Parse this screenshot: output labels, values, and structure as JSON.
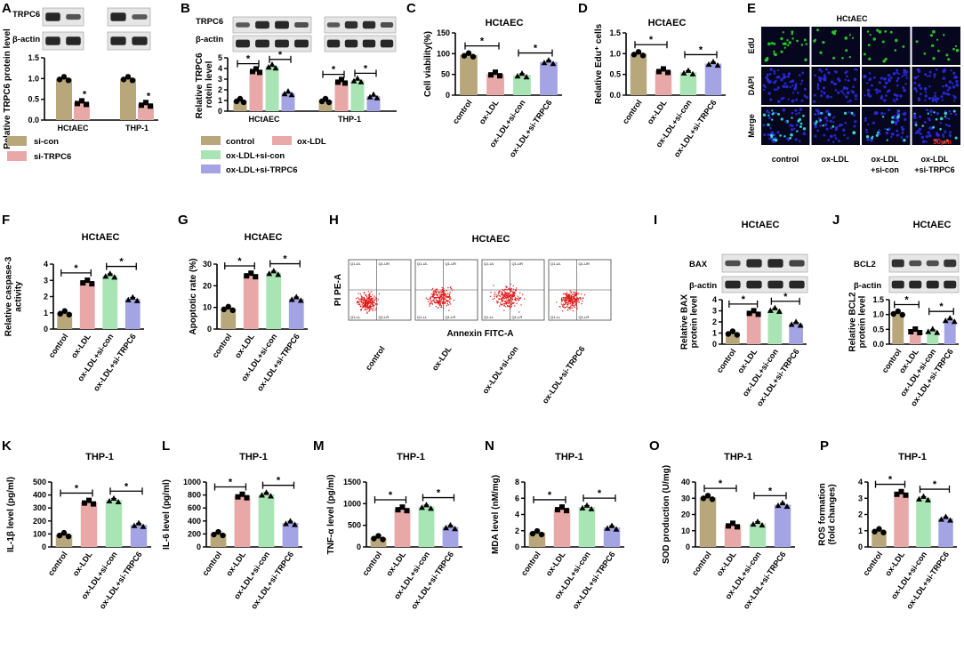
{
  "colors": {
    "control": "#b8a77a",
    "ox_ldl": "#e8a8a8",
    "si_con": "#a8e4b4",
    "si_trpc6": "#a4a4e4",
    "axis": "#000000",
    "blot_bg": "#e6e6e6",
    "flow_dot": "#e01818",
    "micro_bg": "#06061e"
  },
  "panels": {
    "A": {
      "letter": "A",
      "blot_labels": [
        "TRPC6",
        "β-actin"
      ],
      "ylabel": "Relative TRPC6 protein level",
      "chart_data": {
        "type": "bar",
        "categories": [
          "HCtAEC",
          "THP-1"
        ],
        "series": [
          {
            "name": "si-con",
            "values": [
              1.0,
              1.0
            ]
          },
          {
            "name": "si-TRPC6",
            "values": [
              0.42,
              0.38
            ]
          }
        ],
        "ylim": [
          0,
          1.5
        ],
        "yticks": [
          "0.0",
          "0.5",
          "1.0",
          "1.5"
        ]
      },
      "legend": [
        "si-con",
        "si-TRPC6"
      ]
    },
    "B": {
      "letter": "B",
      "blot_labels": [
        "TRPC6",
        "β-actin"
      ],
      "ylabel": "Relative TRPC6 protein level",
      "chart_data": {
        "type": "bar",
        "categories": [
          "HCtAEC",
          "THP-1"
        ],
        "series": [
          {
            "name": "control",
            "values": [
              1.0,
              1.0
            ]
          },
          {
            "name": "ox-LDL",
            "values": [
              3.8,
              2.8
            ]
          },
          {
            "name": "ox-LDL+si-con",
            "values": [
              4.2,
              2.9
            ]
          },
          {
            "name": "ox-LDL+si-TRPC6",
            "values": [
              1.7,
              1.4
            ]
          }
        ],
        "ylim": [
          0,
          5
        ],
        "yticks": [
          "0",
          "1",
          "2",
          "3",
          "4",
          "5"
        ]
      },
      "legend": [
        "control",
        "ox-LDL",
        "ox-LDL+si-con",
        "ox-LDL+si-TRPC6"
      ]
    },
    "C": {
      "letter": "C",
      "title": "HCtAEC",
      "ylabel": "Cell viability(%)",
      "chart_data": {
        "type": "bar",
        "categories": [
          "control",
          "ox-LDL",
          "ox-LDL+si-con",
          "ox-LDL+si-TRPC6"
        ],
        "values": [
          97,
          51,
          48,
          80
        ],
        "ylim": [
          0,
          150
        ],
        "yticks": [
          "0",
          "50",
          "100",
          "150"
        ]
      }
    },
    "D": {
      "letter": "D",
      "title": "HCtAEC",
      "ylabel": "Relative Edu⁺ cells",
      "chart_data": {
        "type": "bar",
        "categories": [
          "control",
          "ox-LDL",
          "ox-LDL+si-con",
          "ox-LDL+si-TRPC6"
        ],
        "values": [
          1.0,
          0.59,
          0.55,
          0.76
        ],
        "ylim": [
          0,
          1.5
        ],
        "yticks": [
          "0.0",
          "0.5",
          "1.0",
          "1.5"
        ]
      }
    },
    "E": {
      "letter": "E",
      "title": "HCtAEC",
      "rows": [
        "EdU",
        "DAPI",
        "Merge"
      ],
      "cols": [
        "control",
        "ox-LDL",
        "ox-LDL +si-con",
        "ox-LDL +si-TRPC6"
      ],
      "scale": "50μm"
    },
    "F": {
      "letter": "F",
      "title": "HCtAEC",
      "ylabel": "Relative caspase-3 activity",
      "chart_data": {
        "type": "bar",
        "categories": [
          "control",
          "ox-LDL",
          "ox-LDL+si-con",
          "ox-LDL+si-TRPC6"
        ],
        "values": [
          1.0,
          2.9,
          3.3,
          1.85
        ],
        "ylim": [
          0,
          4
        ],
        "yticks": [
          "0",
          "1",
          "2",
          "3",
          "4"
        ]
      }
    },
    "G": {
      "letter": "G",
      "title": "HCtAEC",
      "ylabel": "Apoptotic rate (%)",
      "chart_data": {
        "type": "bar",
        "categories": [
          "control",
          "ox-LDL",
          "ox-LDL+si-con",
          "ox-LDL+si-TRPC6"
        ],
        "values": [
          9.5,
          25,
          26,
          14
        ],
        "ylim": [
          0,
          30
        ],
        "yticks": [
          "0",
          "10",
          "20",
          "30"
        ]
      }
    },
    "H": {
      "letter": "H",
      "title": "HCtAEC",
      "ylabel": "PI PE-A",
      "xlabel": "Annexin FITC-A",
      "cols": [
        "control",
        "ox-LDL",
        "ox-LDL+si-con",
        "ox-LDL+si-TRPC6"
      ],
      "quadrants": [
        "Q1-UL",
        "Q1-UR",
        "Q1-LL",
        "Q1-LR"
      ]
    },
    "I": {
      "letter": "I",
      "title": "HCtAEC",
      "blot_labels": [
        "BAX",
        "β-actin"
      ],
      "ylabel": "Relative BAX protein level",
      "chart_data": {
        "type": "bar",
        "categories": [
          "control",
          "ox-LDL",
          "ox-LDL+si-con",
          "ox-LDL+si-TRPC6"
        ],
        "values": [
          1.0,
          2.85,
          3.1,
          1.85
        ],
        "ylim": [
          0,
          4
        ],
        "yticks": [
          "0",
          "1",
          "2",
          "3",
          "4"
        ]
      }
    },
    "J": {
      "letter": "J",
      "title": "HCtAEC",
      "blot_labels": [
        "BCL2",
        "β-actin"
      ],
      "ylabel": "Relative BCL2 protein level",
      "chart_data": {
        "type": "bar",
        "categories": [
          "control",
          "ox-LDL",
          "ox-LDL+si-con",
          "ox-LDL+si-TRPC6"
        ],
        "values": [
          1.05,
          0.45,
          0.45,
          0.82
        ],
        "ylim": [
          0,
          1.5
        ],
        "yticks": [
          "0.0",
          "0.5",
          "1.0",
          "1.5"
        ]
      }
    },
    "K": {
      "letter": "K",
      "title": "THP-1",
      "ylabel": "IL-1β level (pg/ml)",
      "chart_data": {
        "type": "bar",
        "categories": [
          "control",
          "ox-LDL",
          "ox-LDL+si-con",
          "ox-LDL+si-TRPC6"
        ],
        "values": [
          95,
          345,
          360,
          170
        ],
        "ylim": [
          0,
          500
        ],
        "yticks": [
          "0",
          "100",
          "200",
          "300",
          "400",
          "500"
        ]
      }
    },
    "L": {
      "letter": "L",
      "title": "THP-1",
      "ylabel": "IL-6 level (pg/ml)",
      "chart_data": {
        "type": "bar",
        "categories": [
          "control",
          "ox-LDL",
          "ox-LDL+si-con",
          "ox-LDL+si-TRPC6"
        ],
        "values": [
          205,
          785,
          810,
          370
        ],
        "ylim": [
          0,
          1000
        ],
        "yticks": [
          "0",
          "200",
          "400",
          "600",
          "800",
          "1000"
        ]
      }
    },
    "M": {
      "letter": "M",
      "title": "THP-1",
      "ylabel": "TNF-α level (pg/ml)",
      "chart_data": {
        "type": "bar",
        "categories": [
          "control",
          "ox-LDL",
          "ox-LDL+si-con",
          "ox-LDL+si-TRPC6"
        ],
        "values": [
          215,
          880,
          930,
          460
        ],
        "ylim": [
          0,
          1500
        ],
        "yticks": [
          "0",
          "500",
          "1000",
          "1500"
        ]
      }
    },
    "N": {
      "letter": "N",
      "title": "THP-1",
      "ylabel": "MDA level (nM/mg)",
      "chart_data": {
        "type": "bar",
        "categories": [
          "control",
          "ox-LDL",
          "ox-LDL+si-con",
          "ox-LDL+si-TRPC6"
        ],
        "values": [
          1.75,
          4.7,
          4.9,
          2.4
        ],
        "ylim": [
          0,
          8
        ],
        "yticks": [
          "0",
          "2",
          "4",
          "6",
          "8"
        ]
      }
    },
    "O": {
      "letter": "O",
      "title": "THP-1",
      "ylabel": "SOD production (U/mg)",
      "chart_data": {
        "type": "bar",
        "categories": [
          "control",
          "ox-LDL",
          "ox-LDL+si-con",
          "ox-LDL+si-TRPC6"
        ],
        "values": [
          30.5,
          13.5,
          14.5,
          26
        ],
        "ylim": [
          0,
          40
        ],
        "yticks": [
          "0",
          "10",
          "20",
          "30",
          "40"
        ]
      }
    },
    "P": {
      "letter": "P",
      "title": "THP-1",
      "ylabel": "ROS formation (fold changes)",
      "chart_data": {
        "type": "bar",
        "categories": [
          "control",
          "ox-LDL",
          "ox-LDL+si-con",
          "ox-LDL+si-TRPC6"
        ],
        "values": [
          1.0,
          3.3,
          3.0,
          1.75
        ],
        "ylim": [
          0,
          4
        ],
        "yticks": [
          "0",
          "1",
          "2",
          "3",
          "4"
        ]
      }
    }
  },
  "star": "*"
}
